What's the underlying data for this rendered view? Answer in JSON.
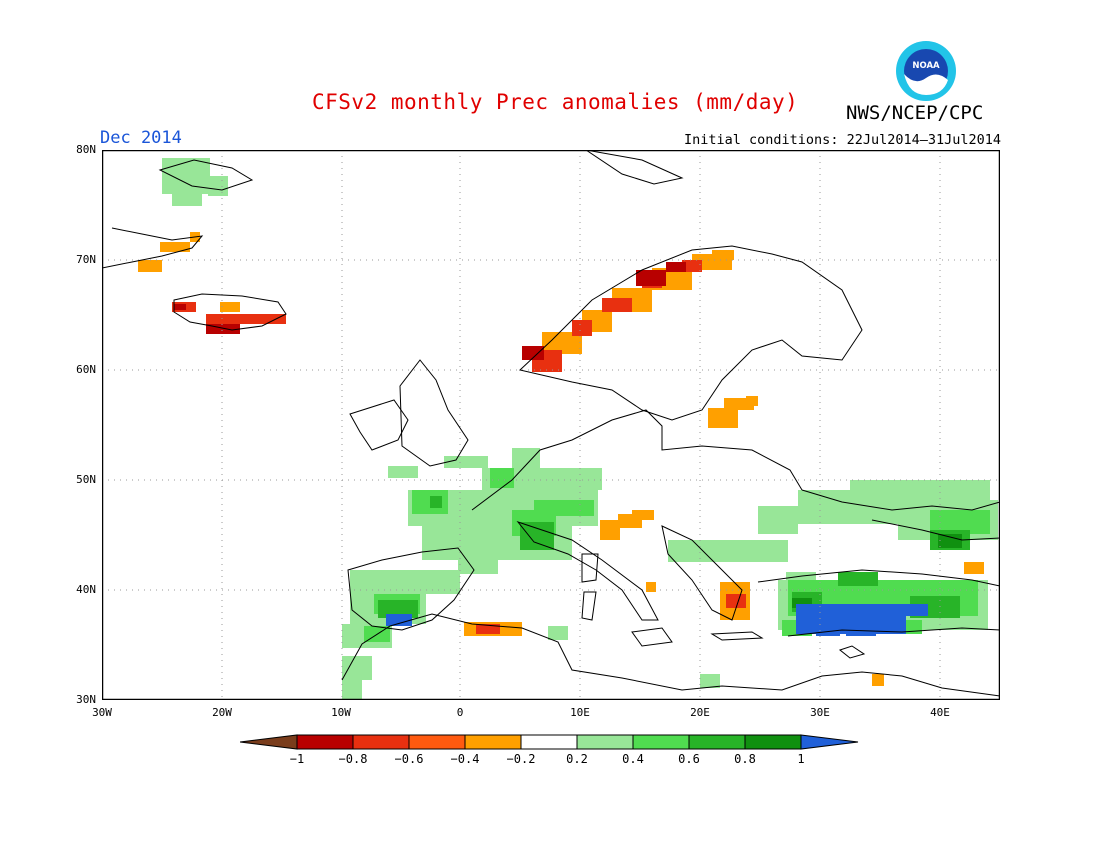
{
  "title": "CFSv2 monthly Prec anomalies (mm/day)",
  "agency": "NWS/NCEP/CPC",
  "logo_text": "NOAA",
  "month": "Dec 2014",
  "initial_conditions": "Initial conditions: 22Jul2014–31Jul2014",
  "lat_labels": [
    "80N",
    "70N",
    "60N",
    "50N",
    "40N",
    "30N"
  ],
  "lon_labels": [
    "30W",
    "20W",
    "10W",
    "0",
    "10E",
    "20E",
    "30E",
    "40E"
  ],
  "colorbar": {
    "labels": [
      "−1",
      "−0.8",
      "−0.6",
      "−0.4",
      "−0.2",
      "0.2",
      "0.4",
      "0.6",
      "0.8",
      "1"
    ],
    "colors": [
      "#7a3d1c",
      "#b80000",
      "#e83010",
      "#ff5a10",
      "#ffa000",
      "#ffffff",
      "#98e698",
      "#50dc50",
      "#28b428",
      "#109010",
      "#2060d8"
    ]
  }
}
